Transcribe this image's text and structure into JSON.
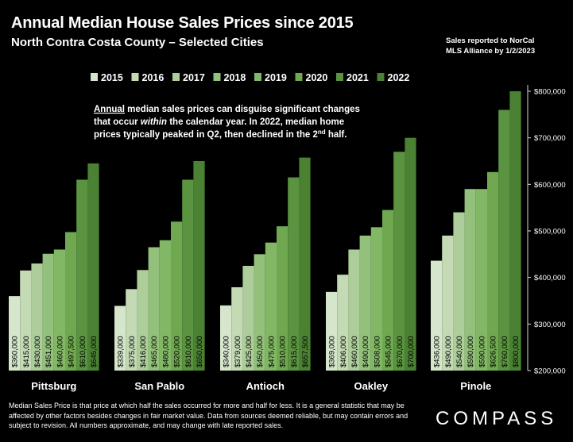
{
  "header": {
    "title": "Annual Median House Sales Prices since 2015",
    "subtitle": "North Contra Costa County – Selected Cities",
    "source_line1": "Sales reported to NorCal",
    "source_line2": "MLS Alliance by 1/2/2023"
  },
  "annotation": {
    "line1_u": "Annual",
    "line1_rest": " median sales prices can disguise significant changes",
    "line2_pre": "that occur ",
    "line2_em": "within",
    "line2_post": " the calendar year. In 2022, median home",
    "line3": "prices typically peaked in Q2, then declined in the 2",
    "line3_sup": "nd",
    "line3_end": " half."
  },
  "footer": {
    "footnote": "Median Sales Price is that price at which half the sales occurred for more and half for less. It is a general statistic that may be affected by other factors besides changes in fair market value. Data from sources deemed reliable, but may contain errors and subject to revision.  All numbers approximate, and may change with late reported sales.",
    "logo": "COMPASS"
  },
  "chart_data": {
    "type": "bar",
    "title": "Annual Median House Sales Prices since 2015",
    "categories": [
      "Pittsburg",
      "San Pablo",
      "Antioch",
      "Oakley",
      "Pinole"
    ],
    "series": [
      {
        "name": "2015",
        "color": "#d6e6cc",
        "values": [
          360000,
          339000,
          340000,
          369000,
          436000
        ]
      },
      {
        "name": "2016",
        "color": "#c3dab5",
        "values": [
          415000,
          375000,
          379000,
          406000,
          490000
        ]
      },
      {
        "name": "2017",
        "color": "#adcd9a",
        "values": [
          430000,
          416000,
          425000,
          460000,
          540000
        ]
      },
      {
        "name": "2018",
        "color": "#93c07b",
        "values": [
          451000,
          465000,
          450000,
          490000,
          590000
        ]
      },
      {
        "name": "2019",
        "color": "#82b766",
        "values": [
          460000,
          480000,
          475000,
          508000,
          590000
        ]
      },
      {
        "name": "2020",
        "color": "#6fa850",
        "values": [
          497500,
          520000,
          510000,
          545000,
          626500
        ]
      },
      {
        "name": "2021",
        "color": "#5b9440",
        "values": [
          610000,
          610000,
          615000,
          670000,
          760000
        ]
      },
      {
        "name": "2022",
        "color": "#4a8133",
        "values": [
          645000,
          650000,
          657500,
          700000,
          800000
        ]
      }
    ],
    "data_labels": [
      [
        "$360,000",
        "$415,000",
        "$430,000",
        "$451,000",
        "$460,000",
        "$497,500",
        "$610,000",
        "$645,000"
      ],
      [
        "$339,000",
        "$375,000",
        "$416,000",
        "$465,000",
        "$480,000",
        "$520,000",
        "$610,000",
        "$650,000"
      ],
      [
        "$340,000",
        "$379,000",
        "$425,000",
        "$450,000",
        "$475,000",
        "$510,000",
        "$615,000",
        "$657,500"
      ],
      [
        "$369,000",
        "$406,000",
        "$460,000",
        "$490,000",
        "$508,000",
        "$545,000",
        "$670,000",
        "$700,000"
      ],
      [
        "$436,000",
        "$490,000",
        "$540,000",
        "$590,000",
        "$590,000",
        "$626,500",
        "$760,000",
        "$800,000"
      ]
    ],
    "y_ticks": [
      200000,
      300000,
      400000,
      500000,
      600000,
      700000,
      800000
    ],
    "y_tick_labels": [
      "$200,000",
      "$300,000",
      "$400,000",
      "$500,000",
      "$600,000",
      "$700,000",
      "$800,000"
    ],
    "ylim": [
      200000,
      800000
    ],
    "axis_side": "right",
    "legend_position": "top",
    "grid": false
  }
}
